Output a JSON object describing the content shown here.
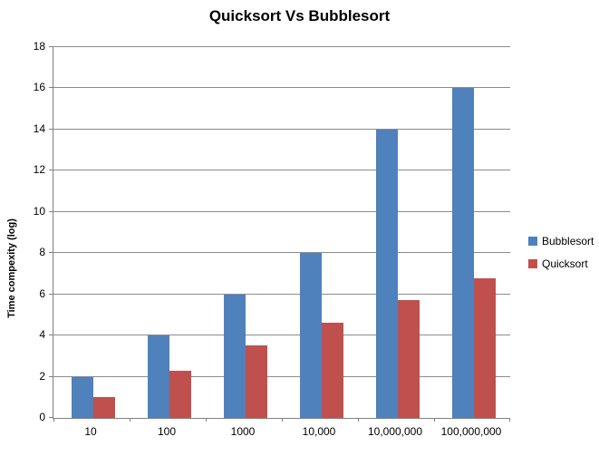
{
  "chart_data": {
    "type": "bar",
    "title": "Quicksort Vs Bubblesort",
    "categories": [
      "10",
      "100",
      "1000",
      "10,000",
      "10,000,000",
      "100,000,000"
    ],
    "series": [
      {
        "name": "Bubblesort",
        "color": "#4F81BD",
        "values": [
          2,
          4,
          6,
          8,
          14,
          16
        ]
      },
      {
        "name": "Quicksort",
        "color": "#C0504D",
        "values": [
          1,
          2.3,
          3.5,
          4.6,
          5.7,
          6.8
        ]
      }
    ],
    "xlabel": "",
    "ylabel": "Time compexity (log)",
    "ylim": [
      0,
      18
    ],
    "ytick_step": 2,
    "grid": true,
    "legend_position": "right"
  },
  "colors": {
    "background": "#FFFFFF",
    "gridline": "#8C8C8C",
    "axis": "#808080",
    "text": "#000000"
  }
}
